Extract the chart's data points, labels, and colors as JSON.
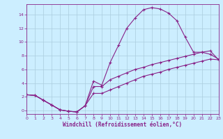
{
  "xlabel": "Windchill (Refroidissement éolien,°C)",
  "background_color": "#cceeff",
  "grid_color": "#aaccdd",
  "line_color": "#882288",
  "marker": "+",
  "xlim": [
    0,
    23
  ],
  "ylim": [
    -0.5,
    15.5
  ],
  "xticks": [
    0,
    1,
    2,
    3,
    4,
    5,
    6,
    7,
    8,
    9,
    10,
    11,
    12,
    13,
    14,
    15,
    16,
    17,
    18,
    19,
    20,
    21,
    22,
    23
  ],
  "yticks": [
    0,
    2,
    4,
    6,
    8,
    10,
    12,
    14
  ],
  "series1_x": [
    0,
    1,
    2,
    3,
    4,
    5,
    6,
    7,
    8,
    9,
    10,
    11,
    12,
    13,
    14,
    15,
    16,
    17,
    18,
    19,
    20,
    21,
    22,
    23
  ],
  "series1_y": [
    2.3,
    2.2,
    1.5,
    0.8,
    0.1,
    -0.1,
    -0.2,
    0.7,
    4.3,
    3.7,
    7.0,
    9.5,
    12.0,
    13.5,
    14.7,
    15.0,
    14.8,
    14.2,
    13.1,
    10.7,
    8.5,
    8.5,
    8.2,
    7.5
  ],
  "series2_x": [
    0,
    1,
    2,
    3,
    4,
    5,
    6,
    7,
    8,
    9,
    10,
    11,
    12,
    13,
    14,
    15,
    16,
    17,
    18,
    19,
    20,
    21,
    22,
    23
  ],
  "series2_y": [
    2.3,
    2.2,
    1.5,
    0.8,
    0.1,
    -0.1,
    -0.2,
    0.7,
    3.5,
    3.5,
    4.5,
    5.0,
    5.5,
    6.0,
    6.3,
    6.7,
    7.0,
    7.3,
    7.6,
    7.9,
    8.2,
    8.5,
    8.7,
    7.4
  ],
  "series3_x": [
    0,
    1,
    2,
    3,
    4,
    5,
    6,
    7,
    8,
    9,
    10,
    11,
    12,
    13,
    14,
    15,
    16,
    17,
    18,
    19,
    20,
    21,
    22,
    23
  ],
  "series3_y": [
    2.3,
    2.2,
    1.5,
    0.8,
    0.1,
    -0.1,
    -0.2,
    0.7,
    2.5,
    2.5,
    3.0,
    3.5,
    4.0,
    4.5,
    5.0,
    5.3,
    5.6,
    6.0,
    6.3,
    6.6,
    6.9,
    7.2,
    7.5,
    7.4
  ]
}
